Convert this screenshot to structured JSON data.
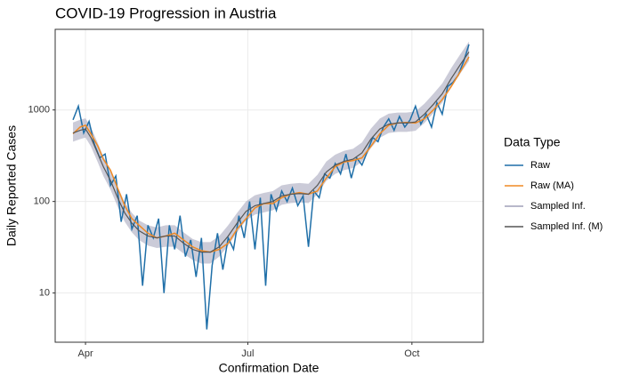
{
  "chart_data": {
    "type": "line",
    "title": "COVID-19 Progression in Austria",
    "x_label": "Confirmation Date",
    "y_label": "Daily Reported Cases",
    "legend_title": "Data Type",
    "legend_position": "right",
    "log_y": true,
    "grid": true,
    "xlim": [
      -17,
      223
    ],
    "xticks": [
      {
        "value": 0,
        "label": "Apr"
      },
      {
        "value": 91,
        "label": "Jul"
      },
      {
        "value": 183,
        "label": "Oct"
      }
    ],
    "ylim": [
      2.9,
      7600
    ],
    "yticks": [
      10,
      100,
      1000
    ],
    "series": [
      {
        "name": "Raw",
        "color": "#1f6fa8",
        "x": [
          -7,
          -4,
          -1,
          2,
          5,
          8,
          11,
          14,
          17,
          20,
          23,
          26,
          29,
          32,
          35,
          38,
          41,
          44,
          47,
          50,
          53,
          56,
          59,
          62,
          65,
          68,
          71,
          74,
          77,
          80,
          83,
          86,
          89,
          92,
          95,
          98,
          101,
          104,
          107,
          110,
          113,
          116,
          119,
          122,
          125,
          128,
          131,
          134,
          137,
          140,
          143,
          146,
          149,
          152,
          155,
          158,
          161,
          164,
          167,
          170,
          173,
          176,
          179,
          182,
          185,
          188,
          191,
          194,
          197,
          200,
          203,
          206,
          209,
          212,
          215
        ],
        "values": [
          780,
          1100,
          560,
          750,
          420,
          300,
          330,
          150,
          190,
          60,
          120,
          50,
          70,
          12,
          55,
          40,
          65,
          10,
          55,
          30,
          70,
          25,
          38,
          15,
          40,
          4,
          20,
          45,
          18,
          40,
          30,
          70,
          40,
          100,
          30,
          110,
          12,
          120,
          80,
          130,
          100,
          140,
          90,
          115,
          32,
          130,
          110,
          200,
          180,
          260,
          200,
          330,
          180,
          300,
          250,
          350,
          500,
          450,
          650,
          800,
          600,
          850,
          650,
          780,
          1100,
          700,
          900,
          650,
          1200,
          900,
          1800,
          2000,
          2400,
          3400,
          5200
        ]
      },
      {
        "name": "Raw (MA)",
        "color": "#f08a24",
        "x": [
          -7,
          -3,
          0,
          3,
          7,
          10,
          14,
          18,
          22,
          26,
          30,
          35,
          40,
          45,
          50,
          55,
          60,
          65,
          70,
          75,
          80,
          85,
          90,
          95,
          100,
          105,
          110,
          115,
          120,
          125,
          130,
          135,
          140,
          145,
          150,
          155,
          160,
          165,
          170,
          175,
          180,
          185,
          190,
          195,
          200,
          205,
          210,
          215
        ],
        "values": [
          550,
          650,
          680,
          550,
          400,
          290,
          220,
          140,
          90,
          65,
          55,
          45,
          40,
          42,
          45,
          38,
          32,
          29,
          28,
          30,
          35,
          50,
          65,
          85,
          95,
          95,
          110,
          120,
          125,
          120,
          130,
          180,
          240,
          270,
          280,
          300,
          400,
          550,
          680,
          720,
          730,
          720,
          800,
          1000,
          1300,
          1800,
          2600,
          3800
        ]
      },
      {
        "name": "Sampled Inf.",
        "color": "#a0a0b8",
        "x": [
          -7,
          -3,
          0,
          3,
          7,
          10,
          14,
          18,
          22,
          26,
          30,
          35,
          40,
          45,
          50,
          55,
          60,
          65,
          70,
          75,
          80,
          85,
          90,
          95,
          100,
          105,
          110,
          115,
          120,
          125,
          130,
          135,
          140,
          145,
          150,
          155,
          160,
          165,
          170,
          175,
          180,
          185,
          190,
          195,
          200,
          205,
          210,
          215
        ],
        "lower": [
          450,
          480,
          500,
          400,
          265,
          190,
          135,
          88,
          60,
          46,
          38,
          33,
          31,
          32,
          32,
          27,
          23,
          21,
          21,
          25,
          33,
          46,
          62,
          72,
          76,
          80,
          92,
          96,
          98,
          96,
          120,
          168,
          200,
          220,
          232,
          272,
          384,
          496,
          560,
          576,
          576,
          592,
          720,
          920,
          1200,
          1760,
          2480,
          3440
        ],
        "upper": [
          730,
          780,
          810,
          650,
          430,
          310,
          220,
          145,
          98,
          75,
          62,
          55,
          52,
          55,
          55,
          46,
          39,
          36,
          36,
          42,
          55,
          75,
          100,
          117,
          124,
          130,
          150,
          156,
          159,
          156,
          195,
          273,
          325,
          358,
          377,
          442,
          624,
          806,
          910,
          936,
          936,
          962,
          1170,
          1500,
          1950,
          2860,
          4030,
          5590
        ]
      },
      {
        "name": "Sampled Inf. (M)",
        "color": "#555555",
        "x": [
          -7,
          -3,
          0,
          3,
          7,
          10,
          14,
          18,
          22,
          26,
          30,
          35,
          40,
          45,
          50,
          55,
          60,
          65,
          70,
          75,
          80,
          85,
          90,
          95,
          100,
          105,
          110,
          115,
          120,
          125,
          130,
          135,
          140,
          145,
          150,
          155,
          160,
          165,
          170,
          175,
          180,
          185,
          190,
          195,
          200,
          205,
          210,
          215
        ],
        "values": [
          560,
          600,
          620,
          500,
          330,
          240,
          170,
          110,
          75,
          58,
          48,
          42,
          40,
          42,
          42,
          35,
          30,
          28,
          28,
          32,
          42,
          58,
          78,
          90,
          95,
          100,
          115,
          120,
          122,
          120,
          150,
          210,
          250,
          275,
          290,
          340,
          480,
          620,
          700,
          720,
          720,
          740,
          900,
          1150,
          1500,
          2200,
          3100,
          4300
        ]
      }
    ]
  }
}
